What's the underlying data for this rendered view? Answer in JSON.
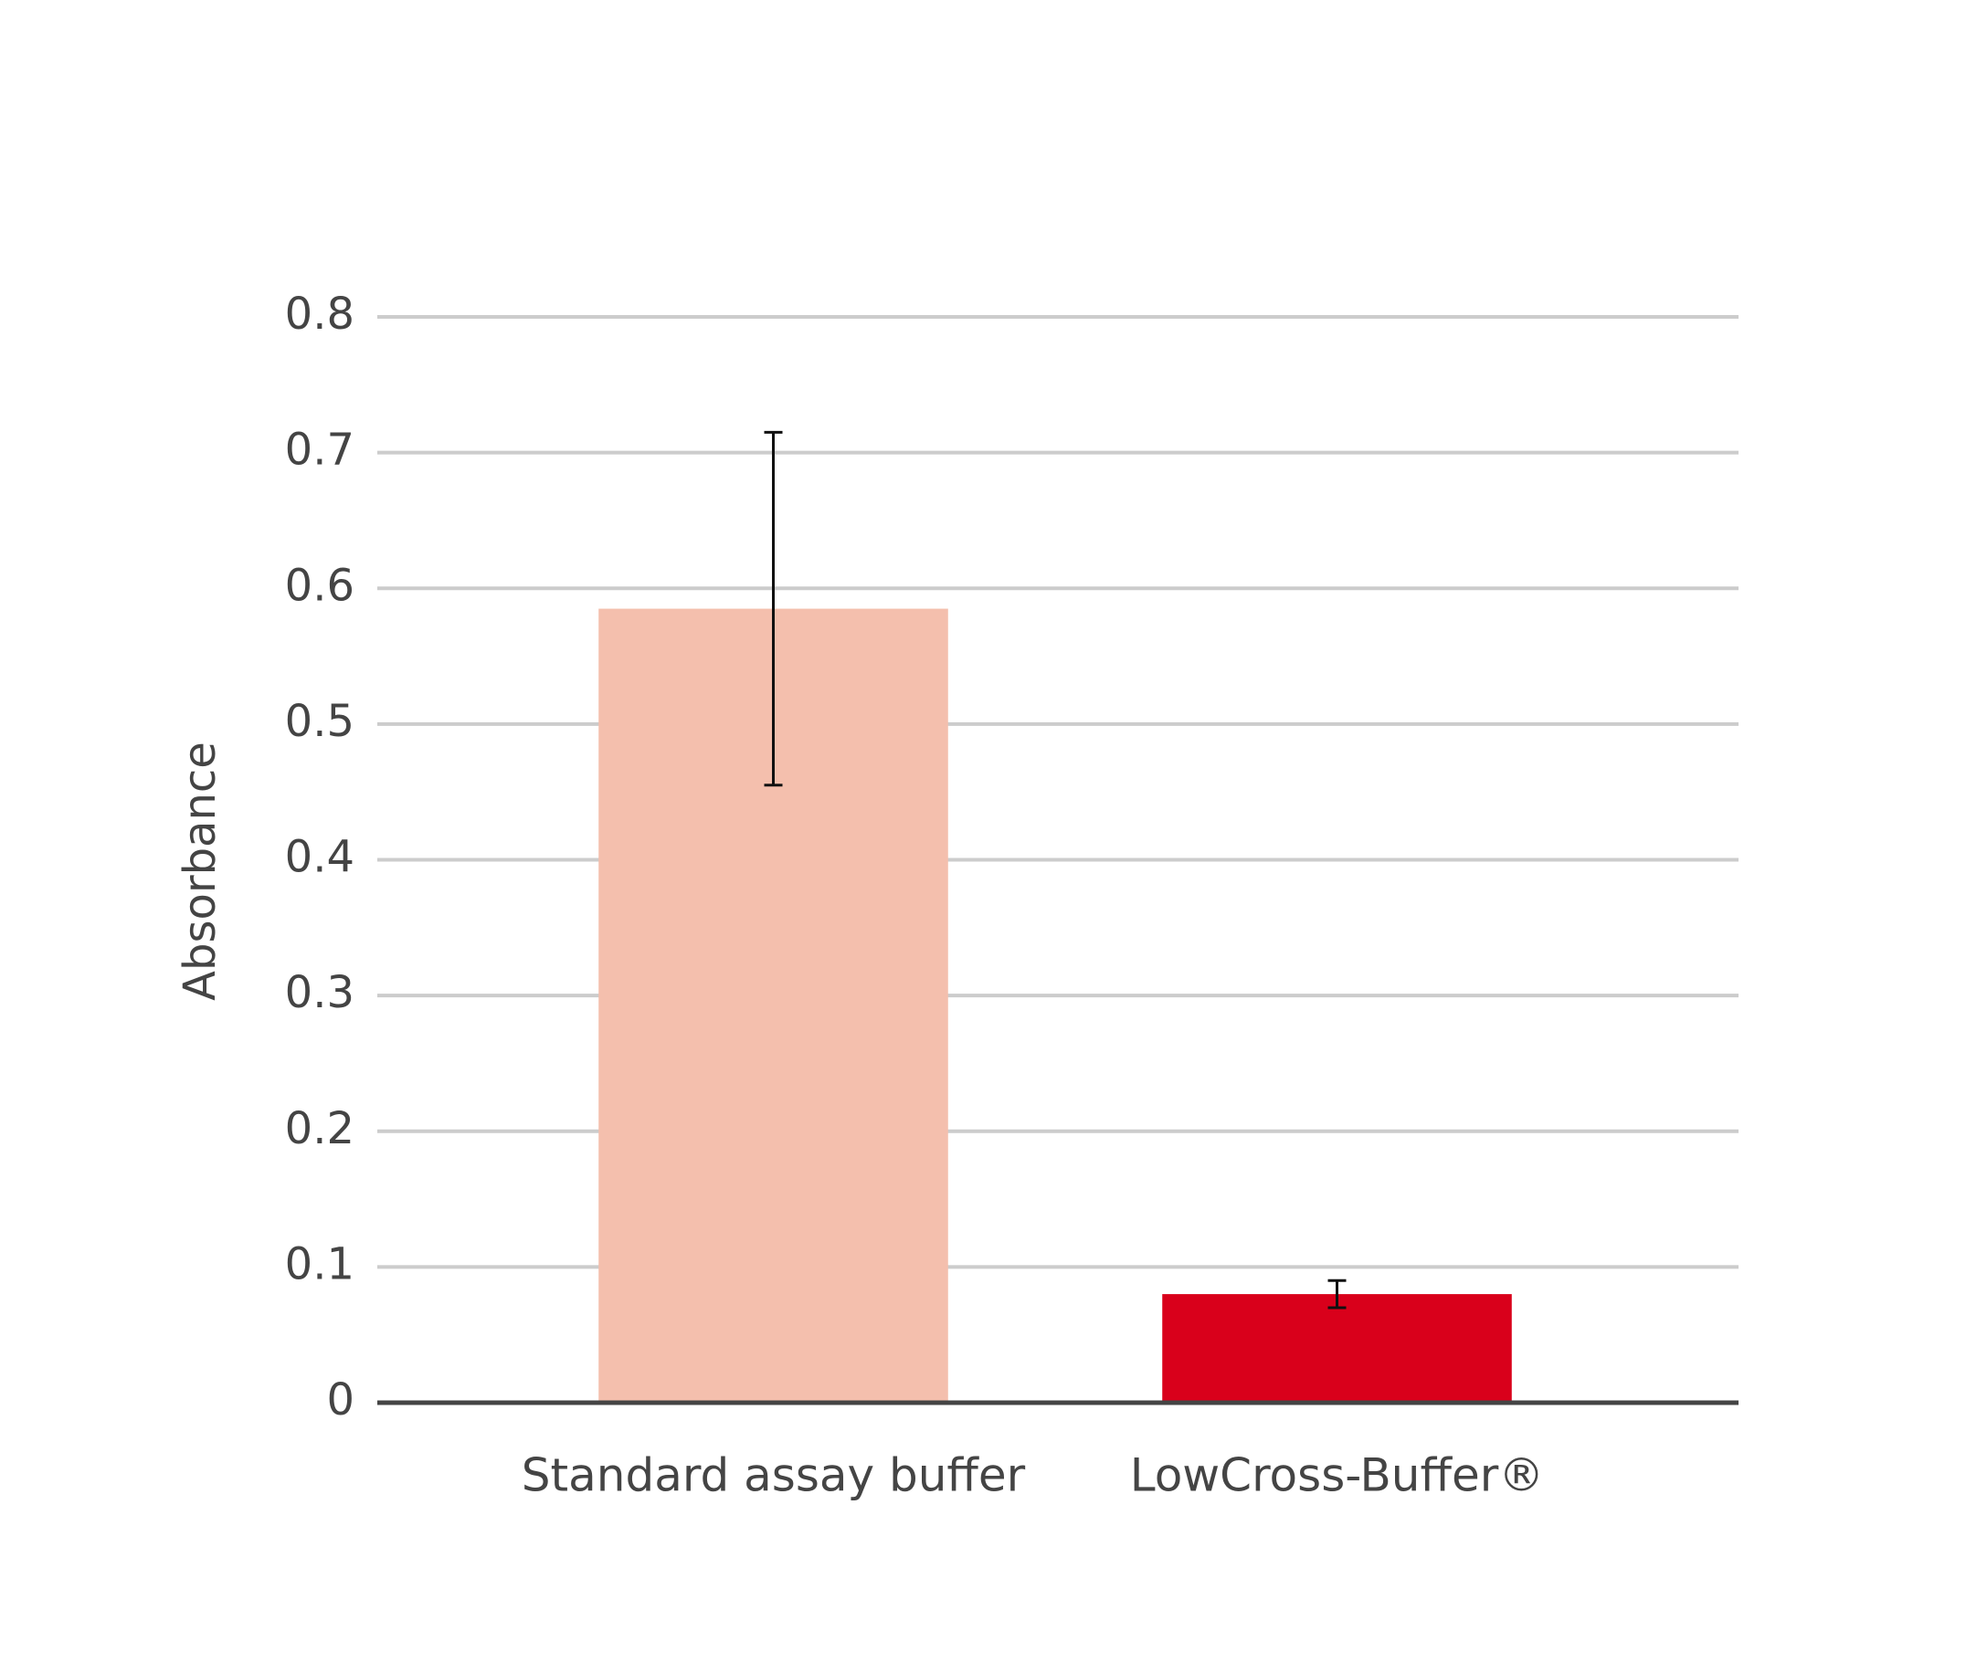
{
  "chart_data": {
    "type": "bar",
    "y_label": "Absorbance",
    "categories": [
      "Standard assay buffer",
      "LowCross-Buffer®"
    ],
    "values": [
      0.585,
      0.08
    ],
    "errors": [
      0.13,
      0.01
    ],
    "colors": [
      "#f4bfad",
      "#d9001b"
    ],
    "ylim": [
      0,
      0.8
    ],
    "yticks": [
      0,
      0.1,
      0.2,
      0.3,
      0.4,
      0.5,
      0.6,
      0.7,
      0.8
    ],
    "grid": true
  }
}
